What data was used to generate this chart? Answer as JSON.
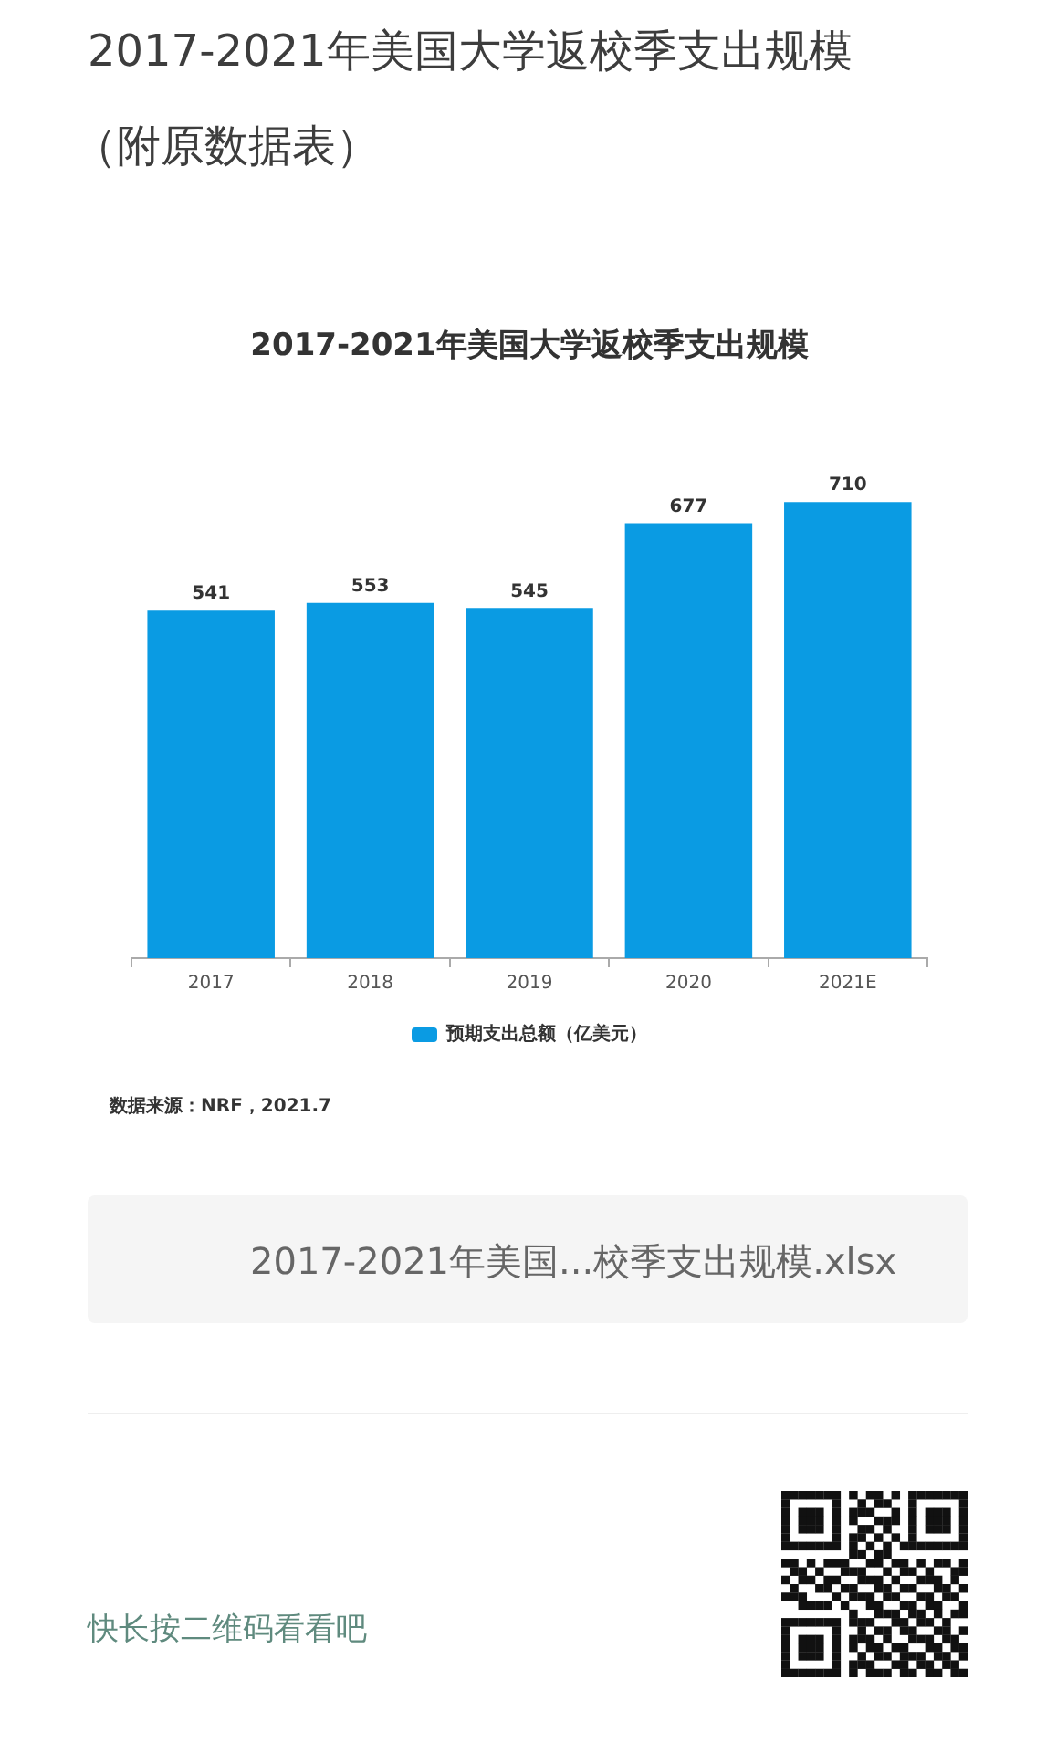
{
  "chart_data": {
    "type": "bar",
    "title": "2017-2021年美国大学返校季支出规模",
    "categories": [
      "2017",
      "2018",
      "2019",
      "2020",
      "2021E"
    ],
    "series": [
      {
        "name": "预期支出总额（亿美元）",
        "color": "#0a9be3",
        "values": [
          541,
          553,
          545,
          677,
          710
        ]
      }
    ],
    "data_labels": true,
    "legend": "bottom",
    "tick_labels": "x",
    "annotations": [
      "2017-2021年美国大学返校季支出规模",
      "（附原数据表）",
      "数据来源：NRF，2021.7",
      "2017-2021年美国...校季支出规模.xlsx",
      "快长按二维码看看吧"
    ]
  }
}
